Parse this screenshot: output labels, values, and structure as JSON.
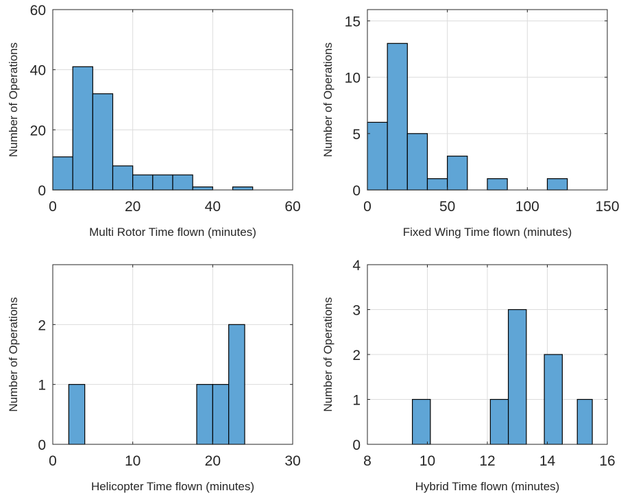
{
  "colors": {
    "bar_fill": "#5fa5d6",
    "bar_edge": "#000000",
    "grid": "#dcdcdc",
    "axes": "#262626"
  },
  "chart_data": [
    {
      "type": "bar",
      "xlabel": "Multi Rotor Time flown (minutes)",
      "ylabel": "Number of Operations",
      "xlim": [
        0,
        60
      ],
      "ylim": [
        0,
        60
      ],
      "xticks": [
        0,
        20,
        40,
        60
      ],
      "yticks": [
        0,
        20,
        40,
        60
      ],
      "grid": true,
      "bins": [
        {
          "start": 0,
          "end": 5,
          "count": 11
        },
        {
          "start": 5,
          "end": 10,
          "count": 41
        },
        {
          "start": 10,
          "end": 15,
          "count": 32
        },
        {
          "start": 15,
          "end": 20,
          "count": 8
        },
        {
          "start": 20,
          "end": 25,
          "count": 5
        },
        {
          "start": 25,
          "end": 30,
          "count": 5
        },
        {
          "start": 30,
          "end": 35,
          "count": 5
        },
        {
          "start": 35,
          "end": 40,
          "count": 1
        },
        {
          "start": 40,
          "end": 45,
          "count": 0
        },
        {
          "start": 45,
          "end": 50,
          "count": 1
        }
      ]
    },
    {
      "type": "bar",
      "xlabel": "Fixed Wing Time flown (minutes)",
      "ylabel": "Number of Operations",
      "xlim": [
        0,
        150
      ],
      "ylim": [
        0,
        16
      ],
      "xticks": [
        0,
        50,
        100,
        150
      ],
      "yticks": [
        0,
        5,
        10,
        15
      ],
      "grid": true,
      "bins": [
        {
          "start": 0,
          "end": 12.5,
          "count": 6
        },
        {
          "start": 12.5,
          "end": 25,
          "count": 13
        },
        {
          "start": 25,
          "end": 37.5,
          "count": 5
        },
        {
          "start": 37.5,
          "end": 50,
          "count": 1
        },
        {
          "start": 50,
          "end": 62.5,
          "count": 3
        },
        {
          "start": 62.5,
          "end": 75,
          "count": 0
        },
        {
          "start": 75,
          "end": 87.5,
          "count": 1
        },
        {
          "start": 87.5,
          "end": 100,
          "count": 0
        },
        {
          "start": 100,
          "end": 112.5,
          "count": 0
        },
        {
          "start": 112.5,
          "end": 125,
          "count": 1
        }
      ]
    },
    {
      "type": "bar",
      "xlabel": "Helicopter Time flown (minutes)",
      "ylabel": "Number of Operations",
      "xlim": [
        0,
        30
      ],
      "ylim": [
        0,
        3
      ],
      "xticks": [
        0,
        10,
        20,
        30
      ],
      "yticks": [
        0,
        1,
        2
      ],
      "grid": true,
      "bins": [
        {
          "start": 2,
          "end": 4,
          "count": 1
        },
        {
          "start": 18,
          "end": 20,
          "count": 1
        },
        {
          "start": 20,
          "end": 22,
          "count": 1
        },
        {
          "start": 22,
          "end": 24,
          "count": 2
        }
      ]
    },
    {
      "type": "bar",
      "xlabel": "Hybrid Time flown (minutes)",
      "ylabel": "Number of Operations",
      "xlim": [
        8,
        16
      ],
      "ylim": [
        0,
        4
      ],
      "xticks": [
        8,
        10,
        12,
        14,
        16
      ],
      "yticks": [
        0,
        1,
        2,
        3,
        4
      ],
      "grid": true,
      "bins": [
        {
          "start": 9.5,
          "end": 10.1,
          "count": 1
        },
        {
          "start": 12.1,
          "end": 12.7,
          "count": 1
        },
        {
          "start": 12.7,
          "end": 13.3,
          "count": 3
        },
        {
          "start": 13.9,
          "end": 14.5,
          "count": 2
        },
        {
          "start": 15.0,
          "end": 15.5,
          "count": 1
        }
      ]
    }
  ]
}
